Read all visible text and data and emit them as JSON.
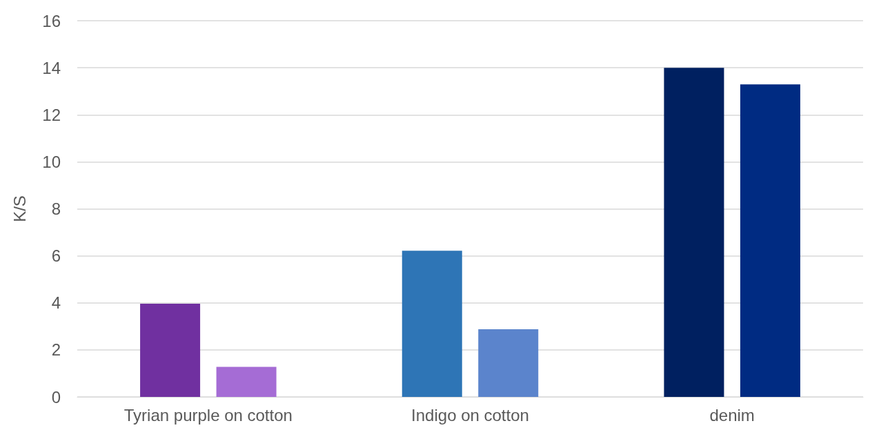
{
  "chart_data": {
    "type": "bar",
    "ylabel": "K/S",
    "categories": [
      "Tyrian purple on cotton",
      "Indigo on cotton",
      "denim"
    ],
    "series": [
      {
        "colors": [
          "#7030a0",
          "#2e75b6",
          "#002060"
        ],
        "values": [
          3.96,
          6.22,
          14.0
        ]
      },
      {
        "colors": [
          "#a56cd5",
          "#5b84cc",
          "#002b82"
        ],
        "values": [
          1.28,
          2.88,
          13.29
        ]
      }
    ],
    "ylim": [
      0,
      16
    ],
    "yticks": [
      0,
      2,
      4,
      6,
      8,
      10,
      12,
      14,
      16
    ],
    "grid": "y",
    "legend": false
  }
}
